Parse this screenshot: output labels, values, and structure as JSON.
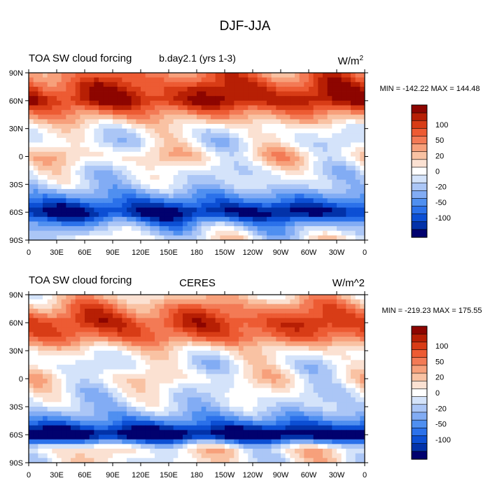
{
  "figure_title": "DJF-JJA",
  "colorbar_ticks": [
    "100",
    "50",
    "20",
    "0",
    "-20",
    "-50",
    "-100"
  ],
  "palette": [
    "#01016e",
    "#0232a9",
    "#0c4fd4",
    "#2b71ea",
    "#4f8ff0",
    "#82acf4",
    "#abc6f6",
    "#d4e3fa",
    "#ffffff",
    "#fbe1d2",
    "#f9c2a3",
    "#f7a07b",
    "#f37a55",
    "#ed5b33",
    "#d83c16",
    "#b71f04",
    "#8d0500"
  ],
  "chart_data": [
    {
      "type": "heatmap",
      "left_title": "TOA SW cloud forcing",
      "center_title": "b.day2.1 (yrs 1-3)",
      "units": "W/m",
      "units_sup": "2",
      "stats": "MIN = -142.22 MAX = 144.48",
      "x_ticks": [
        "0",
        "30E",
        "60E",
        "90E",
        "120E",
        "150E",
        "180",
        "150W",
        "120W",
        "90W",
        "60W",
        "30W",
        "0"
      ],
      "y_ticks": [
        "90N",
        "60N",
        "30N",
        "0",
        "30S",
        "60S",
        "90S"
      ],
      "xlim": [
        0,
        360
      ],
      "ylim": [
        -90,
        90
      ],
      "color_levels": [
        -100,
        -50,
        -20,
        0,
        20,
        50,
        100
      ],
      "min": -142.22,
      "max": 144.48,
      "zonal_pattern": [
        {
          "lat": 90,
          "value": 60
        },
        {
          "lat": 75,
          "value": 90
        },
        {
          "lat": 60,
          "value": 110
        },
        {
          "lat": 45,
          "value": 50
        },
        {
          "lat": 30,
          "value": 0
        },
        {
          "lat": 15,
          "value": -10
        },
        {
          "lat": 0,
          "value": 20
        },
        {
          "lat": -15,
          "value": -10
        },
        {
          "lat": -30,
          "value": -20
        },
        {
          "lat": -45,
          "value": -60
        },
        {
          "lat": -60,
          "value": -120
        },
        {
          "lat": -75,
          "value": -40
        },
        {
          "lat": -90,
          "value": 0
        }
      ]
    },
    {
      "type": "heatmap",
      "left_title": "TOA SW cloud forcing",
      "center_title": "CERES",
      "units": "W/m^2",
      "stats": "MIN = -219.23 MAX = 175.55",
      "x_ticks": [
        "0",
        "30E",
        "60E",
        "90E",
        "120E",
        "150E",
        "180",
        "150W",
        "120W",
        "90W",
        "60W",
        "30W",
        "0"
      ],
      "y_ticks": [
        "90N",
        "60N",
        "30N",
        "0",
        "30S",
        "60S",
        "90S"
      ],
      "xlim": [
        0,
        360
      ],
      "ylim": [
        -90,
        90
      ],
      "color_levels": [
        -100,
        -50,
        -20,
        0,
        20,
        50,
        100
      ],
      "min": -219.23,
      "max": 175.55,
      "zonal_pattern": [
        {
          "lat": 90,
          "value": 20
        },
        {
          "lat": 75,
          "value": 60
        },
        {
          "lat": 60,
          "value": 90
        },
        {
          "lat": 45,
          "value": 70
        },
        {
          "lat": 30,
          "value": 10
        },
        {
          "lat": 15,
          "value": -10
        },
        {
          "lat": 0,
          "value": 10
        },
        {
          "lat": -15,
          "value": -10
        },
        {
          "lat": -30,
          "value": -20
        },
        {
          "lat": -45,
          "value": -60
        },
        {
          "lat": -60,
          "value": -140
        },
        {
          "lat": -75,
          "value": 10
        },
        {
          "lat": -90,
          "value": 0
        }
      ]
    }
  ]
}
